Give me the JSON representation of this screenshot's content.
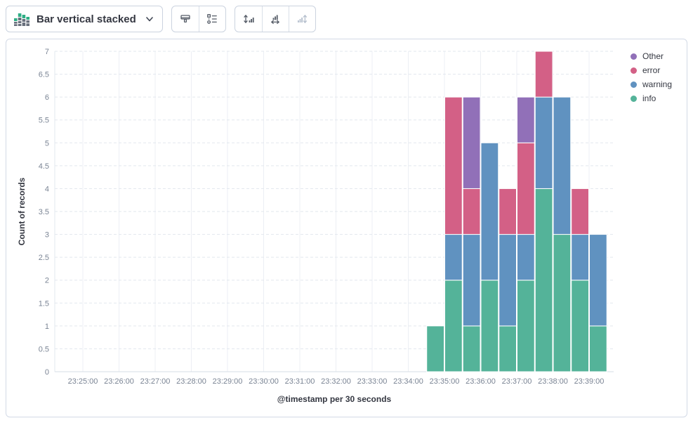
{
  "toolbar": {
    "chart_type": {
      "label": "Bar vertical stacked",
      "icon": "bar-vertical-stacked-icon"
    },
    "style_buttons": [
      {
        "icon": "visual-options-icon"
      },
      {
        "icon": "legend-settings-icon"
      }
    ],
    "axis_buttons": [
      {
        "icon": "left-axis-icon",
        "disabled": false
      },
      {
        "icon": "bottom-axis-icon",
        "disabled": false
      },
      {
        "icon": "right-axis-icon",
        "disabled": true
      }
    ]
  },
  "chart_data": {
    "type": "bar",
    "stacked": true,
    "orientation": "vertical",
    "ylabel": "Count of records",
    "xlabel": "@timestamp per 30 seconds",
    "ylim": [
      0,
      7
    ],
    "y_tick_step": 0.5,
    "grid": {
      "horizontal": "dashed",
      "vertical": "solid"
    },
    "x_tick_labels": [
      "23:25:00",
      "23:26:00",
      "23:27:00",
      "23:28:00",
      "23:29:00",
      "23:30:00",
      "23:31:00",
      "23:32:00",
      "23:33:00",
      "23:34:00",
      "23:35:00",
      "23:36:00",
      "23:37:00",
      "23:38:00",
      "23:39:00"
    ],
    "bucket_seconds": 30,
    "categories": [
      "23:34:30",
      "23:35:00",
      "23:35:30",
      "23:36:00",
      "23:36:30",
      "23:37:00",
      "23:37:30",
      "23:38:00",
      "23:38:30",
      "23:39:00"
    ],
    "series": [
      {
        "name": "info",
        "color": "#54B399",
        "values": [
          1,
          2,
          1,
          2,
          1,
          2,
          4,
          3,
          2,
          1
        ]
      },
      {
        "name": "warning",
        "color": "#6092C0",
        "values": [
          0,
          1,
          2,
          3,
          2,
          1,
          2,
          3,
          1,
          2
        ]
      },
      {
        "name": "error",
        "color": "#D36086",
        "values": [
          0,
          3,
          1,
          0,
          1,
          2,
          1,
          0,
          1,
          0
        ]
      },
      {
        "name": "Other",
        "color": "#9170B8",
        "values": [
          0,
          0,
          2,
          0,
          0,
          1,
          0,
          0,
          0,
          0
        ]
      }
    ],
    "legend": {
      "position": "right",
      "items": [
        "Other",
        "error",
        "warning",
        "info"
      ]
    }
  }
}
